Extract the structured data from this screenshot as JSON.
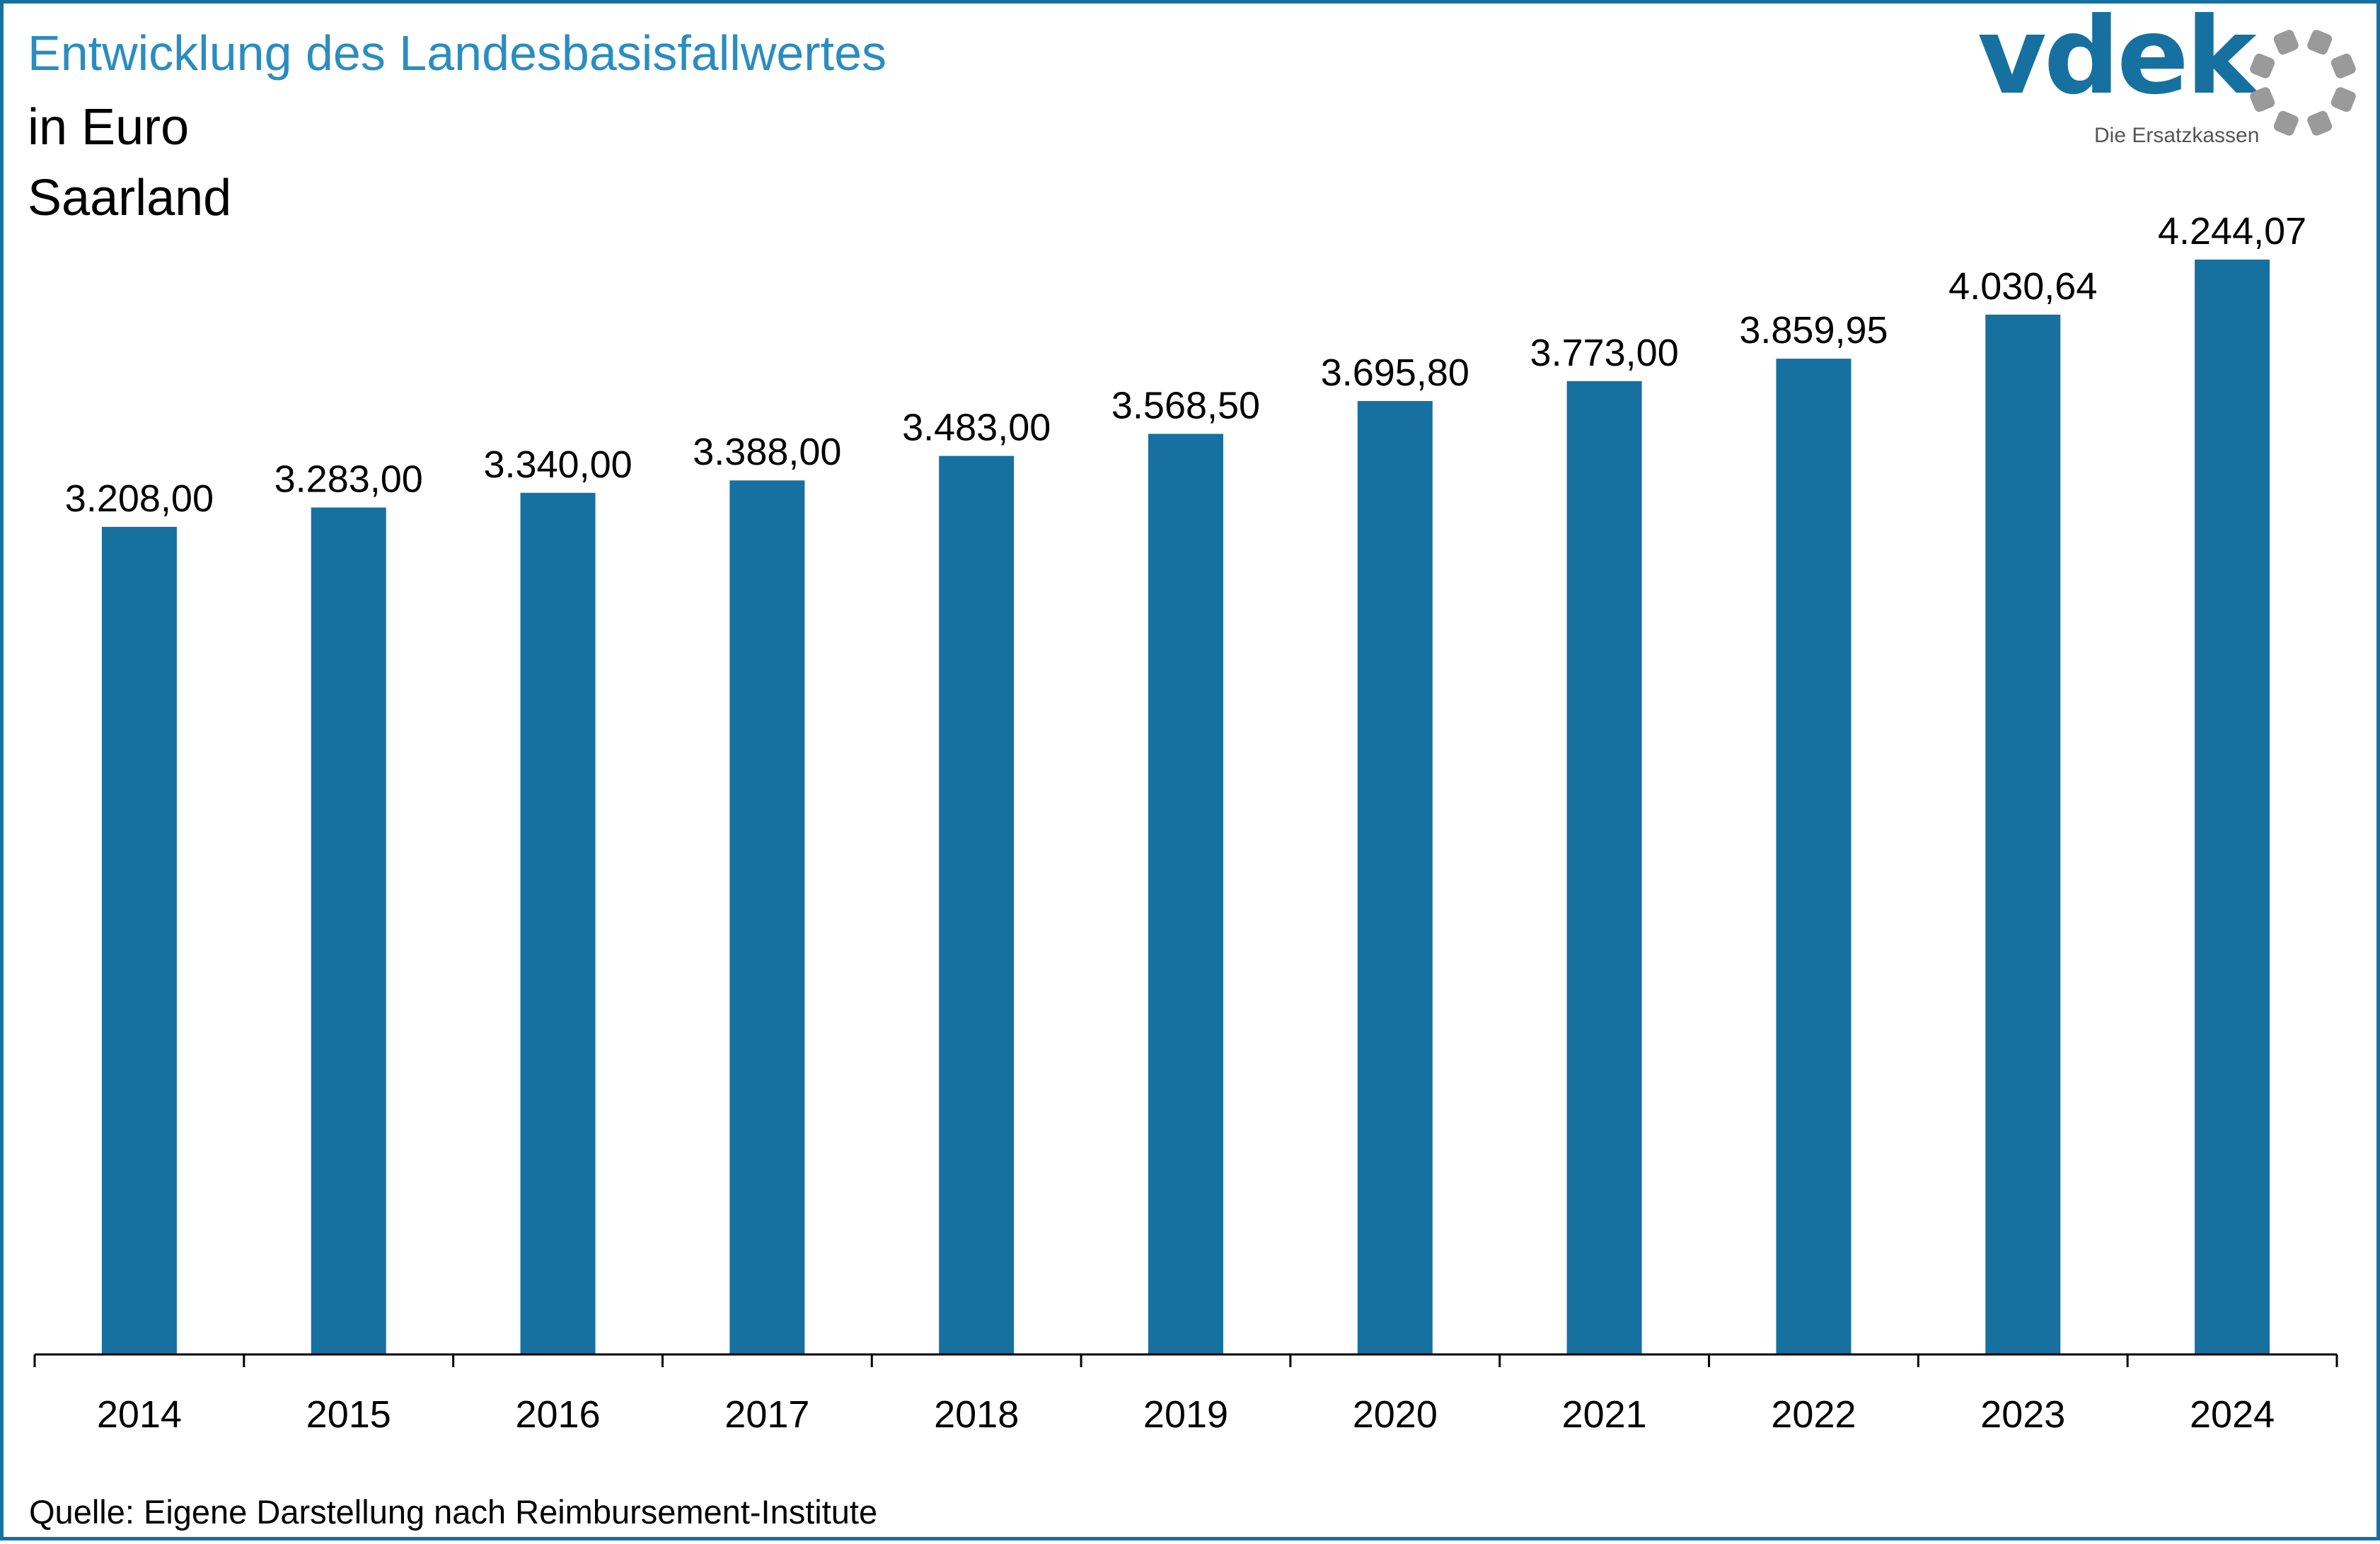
{
  "header": {
    "title": "Entwicklung des Landesbasisfallwertes",
    "subtitle_unit": "in Euro",
    "subtitle_region": "Saarland"
  },
  "logo": {
    "wordmark": "vdek",
    "tagline": "Die Ersatzkassen",
    "icon": "ring-of-dots-icon"
  },
  "footer": {
    "source": "Quelle: Eigene Darstellung nach Reimbursement-Institute"
  },
  "colors": {
    "bar": "#1671a0",
    "title": "#2a8dbf",
    "frame": "#1671a0",
    "logo_dots": "#9a9a9a"
  },
  "chart_data": {
    "type": "bar",
    "title": "Entwicklung des Landesbasisfallwertes",
    "subtitle": "in Euro",
    "xlabel": "",
    "ylabel": "",
    "categories": [
      "2014",
      "2015",
      "2016",
      "2017",
      "2018",
      "2019",
      "2020",
      "2021",
      "2022",
      "2023",
      "2024"
    ],
    "values": [
      3208.0,
      3283.0,
      3340.0,
      3388.0,
      3483.0,
      3568.5,
      3695.8,
      3773.0,
      3859.95,
      4030.64,
      4244.07
    ],
    "value_labels": [
      "3.208,00",
      "3.283,00",
      "3.340,00",
      "3.388,00",
      "3.483,00",
      "3.568,50",
      "3.695,80",
      "3.773,00",
      "3.859,95",
      "4.030,64",
      "4.244,07"
    ],
    "ylim": [
      0,
      4244.07
    ],
    "grid": false,
    "legend": "none"
  }
}
